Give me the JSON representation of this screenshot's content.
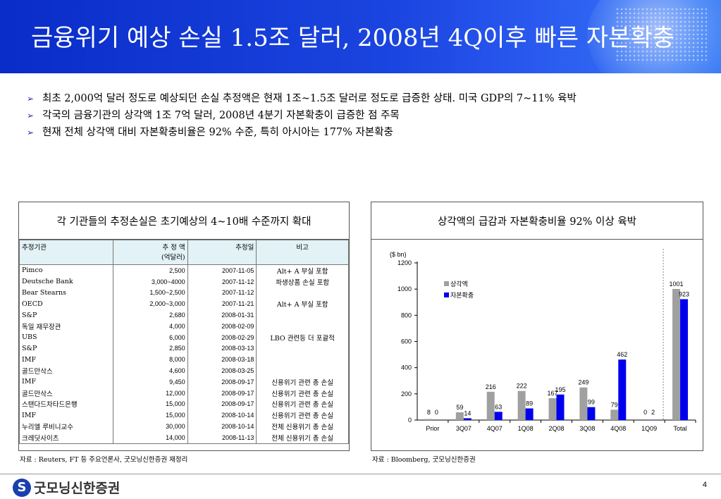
{
  "title": "금융위기 예상 손실 1.5조 달러, 2008년 4Q이후 빠른 자본확충",
  "bullets": [
    "최초 2,000억 달러 정도로 예상되던 손실 추정액은 현재 1조~1.5조 달러로 정도로 급증한 상태. 미국 GDP의 7~11% 육박",
    "각국의 금융기관의 상각액 1조 7억 달러, 2008년 4분기 자본확충이 급증한 점 주목",
    "현재 전체 상각액 대비 자본확충비율은 92% 수준, 특히 아시아는 177%  자본확충"
  ],
  "left_panel": {
    "title": "각 기관들의 추정손실은 초기예상의 4~10배 수준까지 확대",
    "headers": [
      "추정기관",
      "추 정 액\n(억달러)",
      "추정일",
      "비고"
    ],
    "rows": [
      [
        "Pimco",
        "2,500",
        "2007-11-05",
        "Alt+ A 부실 포함"
      ],
      [
        "Deutsche Bank",
        "3,000~4000",
        "2007-11-12",
        "파생상품 손실 포함"
      ],
      [
        "Bear Stearns",
        "1,500~2,500",
        "2007-11-12",
        ""
      ],
      [
        "OECD",
        "2,000~3,000",
        "2007-11-21",
        "Alt+ A 부실 포함"
      ],
      [
        "S&P",
        "2,680",
        "2008-01-31",
        ""
      ],
      [
        "독일 재무장관",
        "4,000",
        "2008-02-09",
        ""
      ],
      [
        "UBS",
        "6,000",
        "2008-02-29",
        "LBO 관련등 더 포괄적"
      ],
      [
        "S&P",
        "2,850",
        "2008-03-13",
        ""
      ],
      [
        "IMF",
        "8,000",
        "2008-03-18",
        ""
      ],
      [
        "골드만삭스",
        "4,600",
        "2008-03-25",
        ""
      ],
      [
        "IMF",
        "9,450",
        "2008-09-17",
        "신용위기 관련 총 손실"
      ],
      [
        "골드만삭스",
        "12,000",
        "2008-09-17",
        "신용위기 관련 총 손실"
      ],
      [
        "스탠다드차타드은행",
        "15,000",
        "2008-09-17",
        "신용위기 관련 총 손실"
      ],
      [
        "IMF",
        "15,000",
        "2008-10-14",
        "신용위기 관련 총 손실"
      ],
      [
        "누리엘 루비니교수",
        "30,000",
        "2008-10-14",
        "전체 신용위기 총 손실"
      ],
      [
        "크레딧사이츠",
        "14,000",
        "2008-11-13",
        "전체 신용위기 총 손실"
      ]
    ],
    "source": "자료 : Reuters, FT 등 주요언론사, 굿모닝신한증권 재정리"
  },
  "right_panel": {
    "title": "상각액의 급감과 자본확충비율 92% 이상 육박",
    "source": "자료 : Bloomberg, 굿모닝신한증권"
  },
  "chart_data": {
    "type": "bar",
    "unit_label": "($ bn)",
    "categories": [
      "Prior",
      "3Q07",
      "4Q07",
      "1Q08",
      "2Q08",
      "3Q08",
      "4Q08",
      "1Q09",
      "Total"
    ],
    "series": [
      {
        "name": "상각액",
        "color": "#a0a0a0",
        "values": [
          8,
          59,
          216,
          222,
          167,
          249,
          79,
          0,
          1001
        ]
      },
      {
        "name": "자본확충",
        "color": "#0000ee",
        "values": [
          0,
          14,
          63,
          89,
          195,
          99,
          462,
          2,
          923
        ]
      }
    ],
    "ylim": [
      0,
      1200
    ],
    "yticks": [
      0,
      200,
      400,
      600,
      800,
      1000,
      1200
    ],
    "legend_position": "top-left",
    "separator_before": "Total"
  },
  "footer": {
    "company": "굿모닝신한증권",
    "page": "4"
  }
}
